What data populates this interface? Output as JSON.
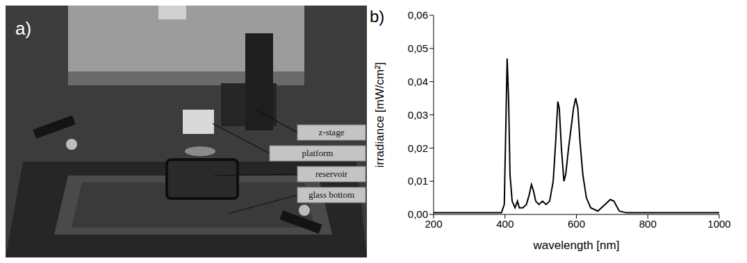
{
  "photo": {
    "panel_label": "a)",
    "labels": [
      "z-stage",
      "platform",
      "reservoir",
      "glass bottom"
    ]
  },
  "chart_data": {
    "type": "line",
    "panel_label": "b)",
    "x_label": "wavelength [nm]",
    "y_label": "irradiance [mW/cm²]",
    "color": "#000000",
    "grid": false,
    "xlim": [
      200,
      1000
    ],
    "xticks": [
      200,
      400,
      600,
      800,
      1000
    ],
    "ylim": [
      0,
      0.06
    ],
    "yticks": [
      {
        "value": 0,
        "label": "0,00"
      },
      {
        "value": 0.01,
        "label": "0,01"
      },
      {
        "value": 0.02,
        "label": "0,02"
      },
      {
        "value": 0.03,
        "label": "0,03"
      },
      {
        "value": 0.04,
        "label": "0,04"
      },
      {
        "value": 0.05,
        "label": "0,05"
      },
      {
        "value": 0.06,
        "label": "0,06"
      }
    ],
    "x": [
      200,
      300,
      390,
      398,
      402,
      406,
      410,
      414,
      420,
      428,
      435,
      440,
      450,
      460,
      468,
      474,
      480,
      486,
      495,
      505,
      515,
      525,
      535,
      542,
      548,
      552,
      558,
      565,
      570,
      578,
      585,
      592,
      598,
      604,
      610,
      618,
      628,
      640,
      660,
      680,
      695,
      705,
      720,
      740,
      800,
      900,
      1000
    ],
    "values": [
      0.0005,
      0.0005,
      0.0005,
      0.003,
      0.025,
      0.047,
      0.035,
      0.012,
      0.004,
      0.002,
      0.004,
      0.002,
      0.002,
      0.003,
      0.006,
      0.009,
      0.007,
      0.004,
      0.003,
      0.004,
      0.003,
      0.004,
      0.01,
      0.022,
      0.034,
      0.032,
      0.02,
      0.01,
      0.012,
      0.02,
      0.026,
      0.032,
      0.035,
      0.032,
      0.022,
      0.012,
      0.005,
      0.002,
      0.001,
      0.003,
      0.0045,
      0.004,
      0.001,
      0.0005,
      0.0005,
      0.0005,
      0.0005
    ]
  }
}
